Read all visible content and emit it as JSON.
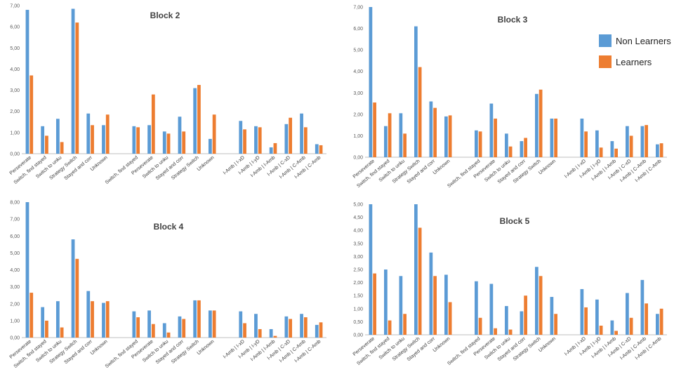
{
  "colors": {
    "non_learners": "#5B9BD5",
    "learners": "#ED7D31"
  },
  "legend": {
    "non_learners": "Non Learners",
    "learners": "Learners"
  },
  "chart_data": [
    {
      "type": "bar",
      "title": "Block 2",
      "ylim": [
        0,
        7
      ],
      "yticks": [
        "0,00",
        "1,00",
        "2,00",
        "3,00",
        "4,00",
        "5,00",
        "6,00",
        "7,00"
      ],
      "categories": [
        "Perseverate",
        "Switch, find stayed",
        "Switch to unku",
        "Strategy Switch",
        "Stayed and corr",
        "Unknown",
        "",
        "Switch, find stayed",
        "Perseverate",
        "Switch to unku",
        "Stayed and corr",
        "Strategy Switch",
        "Unknown",
        "",
        "I-Amb | I-xD",
        "I-Amb | I-yD",
        "I-Amb | I-Amb",
        "I-Amb | C-xD",
        "I-Amb | C-Amb",
        "I-Amb | C-Amb"
      ],
      "series": [
        {
          "name": "Non Learners",
          "values": [
            6.8,
            1.3,
            1.65,
            6.85,
            1.9,
            1.35,
            null,
            1.3,
            1.35,
            1.05,
            1.75,
            3.1,
            0.7,
            null,
            1.55,
            1.3,
            0.3,
            1.4,
            1.9,
            0.45
          ]
        },
        {
          "name": "Learners",
          "values": [
            3.7,
            0.85,
            0.55,
            6.2,
            1.35,
            1.85,
            null,
            1.25,
            2.8,
            0.95,
            1.05,
            3.25,
            1.85,
            null,
            1.15,
            1.25,
            0.5,
            1.7,
            1.25,
            0.4
          ]
        }
      ]
    },
    {
      "type": "bar",
      "title": "Block 3",
      "ylim": [
        0,
        7
      ],
      "yticks": [
        "0,00",
        "1,00",
        "2,00",
        "3,00",
        "4,00",
        "5,00",
        "6,00",
        "7,00"
      ],
      "categories": [
        "Perseverate",
        "Switch, find stayed",
        "Switch to unku",
        "Strategy Switch",
        "Stayed and corr",
        "Unknown",
        "",
        "Switch, find stayed",
        "Perseverate",
        "Switch to unku",
        "Stayed and corr",
        "Strategy Switch",
        "Unknown",
        "",
        "I-Amb | I-xD",
        "I-Amb | I-yD",
        "I-Amb | I-Amb",
        "I-Amb | C-xD",
        "I-Amb | C-Amb",
        "I-Amb | C-Amb"
      ],
      "series": [
        {
          "name": "Non Learners",
          "values": [
            7.0,
            1.45,
            2.05,
            6.1,
            2.6,
            1.9,
            null,
            1.25,
            2.5,
            1.1,
            0.75,
            2.95,
            1.8,
            null,
            1.8,
            1.25,
            0.75,
            1.45,
            1.45,
            0.6
          ]
        },
        {
          "name": "Learners",
          "values": [
            2.55,
            2.05,
            1.1,
            4.2,
            2.3,
            1.95,
            null,
            1.2,
            1.8,
            0.5,
            0.9,
            3.15,
            1.8,
            null,
            1.2,
            0.45,
            0.4,
            1.0,
            1.5,
            0.65
          ]
        }
      ]
    },
    {
      "type": "bar",
      "title": "Block 4",
      "ylim": [
        0,
        8
      ],
      "yticks": [
        "0,00",
        "1,00",
        "2,00",
        "3,00",
        "4,00",
        "5,00",
        "6,00",
        "7,00",
        "8,00"
      ],
      "categories": [
        "Perseverate",
        "Switch, find stayed",
        "Switch to unku",
        "Strategy Switch",
        "Stayed and corr",
        "Unknown",
        "",
        "Switch, find stayed",
        "Perseverate",
        "Switch to unku",
        "Stayed and corr",
        "Strategy Switch",
        "Unknown",
        "",
        "I-Amb | I-xD",
        "I-Amb | I-yD",
        "I-Amb | I-Amb",
        "I-Amb | C-xD",
        "I-Amb | C-Amb",
        "I-Amb | C-Amb"
      ],
      "series": [
        {
          "name": "Non Learners",
          "values": [
            8.0,
            1.8,
            2.15,
            5.8,
            2.75,
            2.05,
            null,
            1.55,
            1.6,
            0.85,
            1.25,
            2.2,
            1.6,
            null,
            1.55,
            1.4,
            0.5,
            1.25,
            1.4,
            0.75
          ]
        },
        {
          "name": "Learners",
          "values": [
            2.65,
            1.0,
            0.6,
            4.65,
            2.15,
            2.15,
            null,
            1.2,
            0.8,
            0.3,
            1.1,
            2.2,
            1.6,
            null,
            0.85,
            0.5,
            0.1,
            1.1,
            1.2,
            0.9
          ]
        }
      ]
    },
    {
      "type": "bar",
      "title": "Block 5",
      "ylim": [
        0,
        5
      ],
      "yticks": [
        "0,00",
        "0,50",
        "1,00",
        "1,50",
        "2,00",
        "2,50",
        "3,00",
        "3,50",
        "4,00",
        "4,50",
        "5,00"
      ],
      "categories": [
        "Perseverate",
        "Switch, find stayed",
        "Switch to unku",
        "Strategy Switch",
        "Stayed and corr",
        "Unknown",
        "",
        "Switch, find stayed",
        "Perseverate",
        "Switch to unku",
        "Stayed and corr",
        "Strategy Switch",
        "Unknown",
        "",
        "I-Amb | I-xD",
        "I-Amb | I-yD",
        "I-Amb | I-Amb",
        "I-Amb | C-xD",
        "I-Amb | C-Amb",
        "I-Amb | C-Amb"
      ],
      "series": [
        {
          "name": "Non Learners",
          "values": [
            5.0,
            2.5,
            2.25,
            5.0,
            3.15,
            2.3,
            null,
            2.05,
            1.95,
            1.1,
            0.9,
            2.6,
            1.45,
            null,
            1.75,
            1.35,
            0.55,
            1.6,
            2.1,
            0.8
          ]
        },
        {
          "name": "Learners",
          "values": [
            2.35,
            0.55,
            0.8,
            4.1,
            2.25,
            1.25,
            null,
            0.65,
            0.25,
            0.2,
            1.5,
            2.25,
            0.8,
            null,
            1.05,
            0.35,
            0.15,
            0.65,
            1.2,
            1.0
          ]
        }
      ]
    }
  ]
}
